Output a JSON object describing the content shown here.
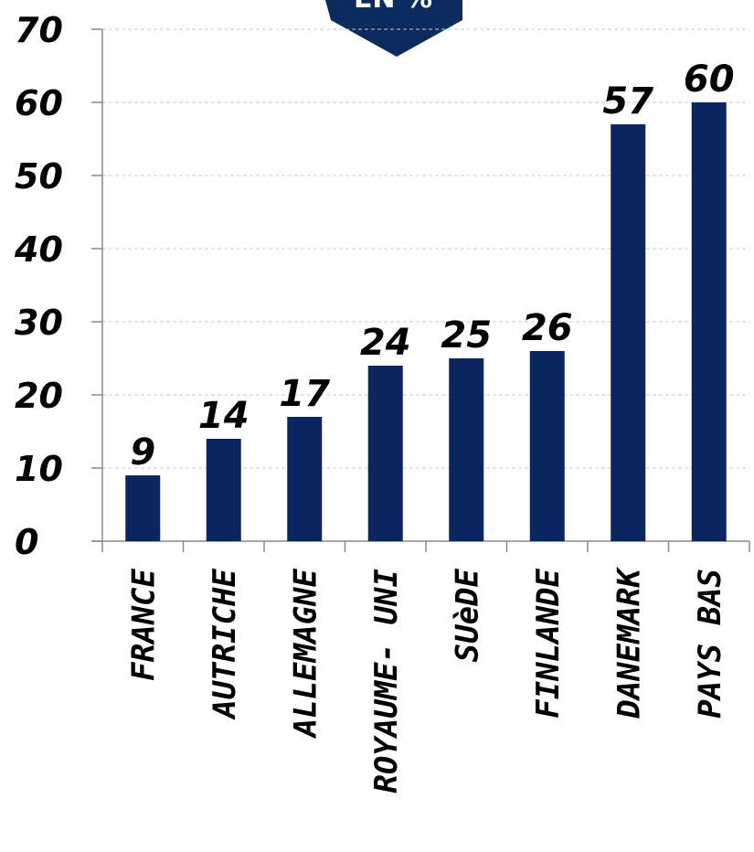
{
  "banner": {
    "text": "EN %",
    "color": "#0b2a5e"
  },
  "chart_data": {
    "type": "bar",
    "categories": [
      "FRANCE",
      "AUTRICHE",
      "ALLEMAGNE",
      "ROYAUME-  UNI",
      "SUèDE",
      "FINLANDE",
      "DANEMARK",
      "PAYS BAS"
    ],
    "values": [
      9,
      14,
      17,
      24,
      25,
      26,
      57,
      60
    ],
    "data_labels": [
      "9",
      "14",
      "17",
      "24",
      "25",
      "26",
      "57",
      "60"
    ],
    "ylim": [
      0,
      70
    ],
    "yticks": [
      0,
      10,
      20,
      30,
      40,
      50,
      60,
      70
    ],
    "ytick_labels": [
      "0",
      "10",
      "20",
      "30",
      "40",
      "50",
      "60",
      "70"
    ],
    "grid": true,
    "bar_color": "#0b2560",
    "title": "",
    "xlabel": "",
    "ylabel": ""
  }
}
